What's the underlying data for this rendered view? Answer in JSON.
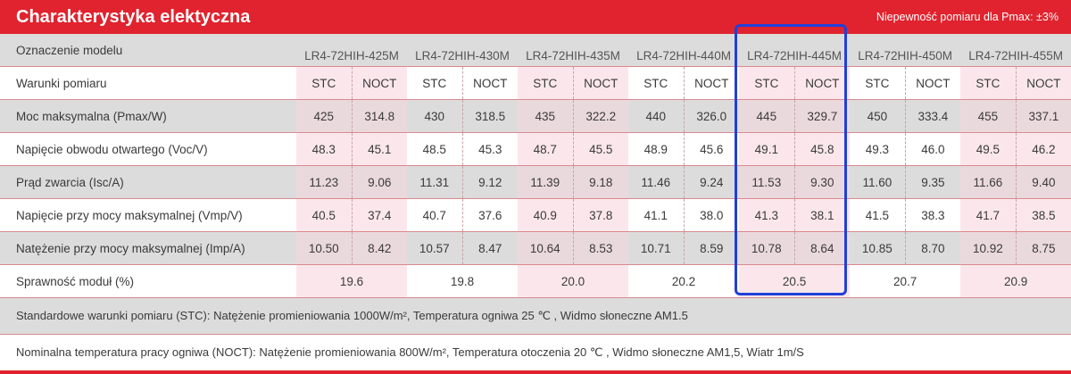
{
  "header": {
    "title": "Charakterystyka elektyczna",
    "note": "Niepewność pomiaru dla Pmax: ±3%"
  },
  "table": {
    "model_label": "Oznaczenie modelu",
    "models": [
      "LR4-72HIH-425M",
      "LR4-72HIH-430M",
      "LR4-72HIH-435M",
      "LR4-72HIH-440M",
      "LR4-72HIH-445M",
      "LR4-72HIH-450M",
      "LR4-72HIH-455M"
    ],
    "conditions_label": "Warunki pomiaru",
    "conditions": [
      "STC",
      "NOCT"
    ],
    "rows": [
      {
        "label": "Moc maksymalna (Pmax/W)",
        "values": [
          "425",
          "314.8",
          "430",
          "318.5",
          "435",
          "322.2",
          "440",
          "326.0",
          "445",
          "329.7",
          "450",
          "333.4",
          "455",
          "337.1"
        ]
      },
      {
        "label": "Napięcie obwodu otwartego (Voc/V)",
        "values": [
          "48.3",
          "45.1",
          "48.5",
          "45.3",
          "48.7",
          "45.5",
          "48.9",
          "45.6",
          "49.1",
          "45.8",
          "49.3",
          "46.0",
          "49.5",
          "46.2"
        ]
      },
      {
        "label": "Prąd zwarcia (Isc/A)",
        "values": [
          "11.23",
          "9.06",
          "11.31",
          "9.12",
          "11.39",
          "9.18",
          "11.46",
          "9.24",
          "11.53",
          "9.30",
          "11.60",
          "9.35",
          "11.66",
          "9.40"
        ]
      },
      {
        "label": "Napięcie przy mocy maksymalnej (Vmp/V)",
        "values": [
          "40.5",
          "37.4",
          "40.7",
          "37.6",
          "40.9",
          "37.8",
          "41.1",
          "38.0",
          "41.3",
          "38.1",
          "41.5",
          "38.3",
          "41.7",
          "38.5"
        ]
      },
      {
        "label": "Natężenie przy mocy maksymalnej (Imp/A)",
        "values": [
          "10.50",
          "8.42",
          "10.57",
          "8.47",
          "10.64",
          "8.53",
          "10.71",
          "8.59",
          "10.78",
          "8.64",
          "10.85",
          "8.70",
          "10.92",
          "8.75"
        ]
      }
    ],
    "efficiency_label": "Sprawność moduł (%)",
    "efficiency": [
      "19.6",
      "19.8",
      "20.0",
      "20.2",
      "20.5",
      "20.7",
      "20.9"
    ]
  },
  "notes": {
    "stc": "Standardowe warunki pomiaru (STC): Natężenie promieniowania 1000W/m², Temperatura ogniwa 25 ℃ , Widmo słoneczne AM1.5",
    "noct": "Nominalna temperatura pracy ogniwa (NOCT): Natężenie promieniowania 800W/m², Temperatura otoczenia 20 ℃ , Widmo słoneczne AM1,5, Wiatr 1m/S"
  },
  "colors": {
    "header_red": "#e0232e",
    "highlight_blue": "#2040d8"
  }
}
